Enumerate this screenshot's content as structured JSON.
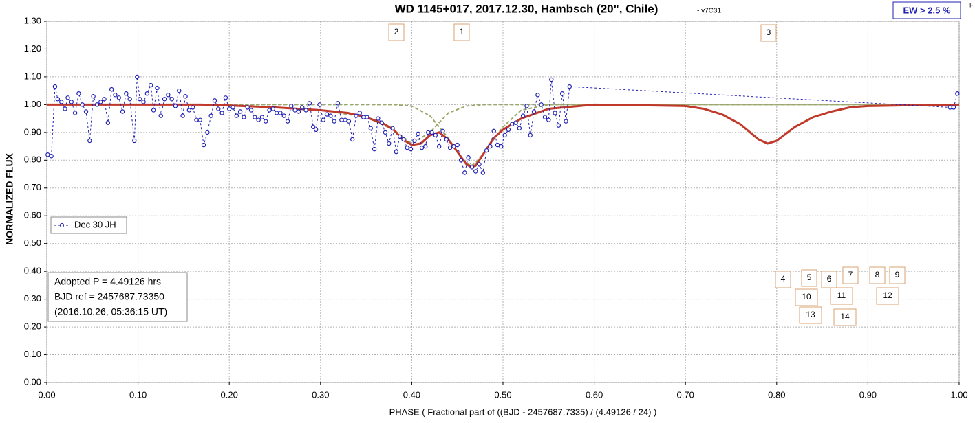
{
  "chart_data": {
    "type": "scatter",
    "title": "WD 1145+017, 2017.12.30, Hambsch (20\", Chile)",
    "subtitle": "- v7C31",
    "corner_note": "F",
    "badge": "EW > 2.5 %",
    "x_label": "PHASE ( Fractional part of ((BJD - 2457687.7335)  / (4.49126 / 24) )",
    "y_label": "NORMALIZED  FLUX",
    "info": [
      "Adopted P = 4.49126 hrs",
      "BJD ref = 2457687.73350",
      "(2016.10.26, 05:36:15 UT)"
    ],
    "dip_labels": [
      "1",
      "2",
      "3",
      "4",
      "5",
      "6",
      "7",
      "8",
      "9",
      "10",
      "11",
      "12",
      "13",
      "14"
    ],
    "legend": "upper left",
    "grid": true,
    "xlim": [
      0,
      1
    ],
    "ylim": [
      0,
      1.3
    ],
    "xticks": [
      {
        "value": 0,
        "label": "0.00"
      },
      {
        "value": 0.1,
        "label": "0.10"
      },
      {
        "value": 0.2,
        "label": "0.20"
      },
      {
        "value": 0.3,
        "label": "0.30"
      },
      {
        "value": 0.4,
        "label": "0.40"
      },
      {
        "value": 0.5,
        "label": "0.50"
      },
      {
        "value": 0.6,
        "label": "0.60"
      },
      {
        "value": 0.7,
        "label": "0.70"
      },
      {
        "value": 0.8,
        "label": "0.80"
      },
      {
        "value": 0.9,
        "label": "0.90"
      },
      {
        "value": 1,
        "label": "1.00"
      }
    ],
    "yticks": [
      {
        "value": 0,
        "label": "0.00"
      },
      {
        "value": 0.1,
        "label": "0.10"
      },
      {
        "value": 0.2,
        "label": "0.20"
      },
      {
        "value": 0.3,
        "label": "0.30"
      },
      {
        "value": 0.4,
        "label": "0.40"
      },
      {
        "value": 0.5,
        "label": "0.50"
      },
      {
        "value": 0.6,
        "label": "0.60"
      },
      {
        "value": 0.7,
        "label": "0.70"
      },
      {
        "value": 0.8,
        "label": "0.80"
      },
      {
        "value": 0.9,
        "label": "0.90"
      },
      {
        "value": 1,
        "label": "1.00"
      },
      {
        "value": 1.1,
        "label": "1.10"
      },
      {
        "value": 1.2,
        "label": "1.20"
      },
      {
        "value": 1.3,
        "label": "1.30"
      }
    ],
    "series": [
      {
        "name": "Dec 30 JH",
        "color": "#1f1fb4",
        "style": "points",
        "x": [
          0.001,
          0.005,
          0.009,
          0.012,
          0.016,
          0.02,
          0.023,
          0.027,
          0.031,
          0.035,
          0.039,
          0.043,
          0.047,
          0.051,
          0.055,
          0.059,
          0.063,
          0.067,
          0.071,
          0.075,
          0.079,
          0.083,
          0.087,
          0.091,
          0.096,
          0.099,
          0.102,
          0.106,
          0.11,
          0.114,
          0.117,
          0.121,
          0.125,
          0.129,
          0.133,
          0.137,
          0.141,
          0.145,
          0.149,
          0.152,
          0.156,
          0.16,
          0.164,
          0.168,
          0.172,
          0.176,
          0.18,
          0.184,
          0.188,
          0.192,
          0.196,
          0.2,
          0.204,
          0.208,
          0.212,
          0.216,
          0.22,
          0.224,
          0.228,
          0.232,
          0.236,
          0.24,
          0.244,
          0.248,
          0.252,
          0.256,
          0.26,
          0.264,
          0.268,
          0.272,
          0.276,
          0.28,
          0.284,
          0.288,
          0.292,
          0.295,
          0.299,
          0.303,
          0.307,
          0.311,
          0.315,
          0.319,
          0.323,
          0.327,
          0.331,
          0.335,
          0.339,
          0.343,
          0.347,
          0.351,
          0.355,
          0.359,
          0.363,
          0.367,
          0.371,
          0.375,
          0.379,
          0.383,
          0.387,
          0.391,
          0.395,
          0.399,
          0.403,
          0.407,
          0.411,
          0.415,
          0.418,
          0.422,
          0.426,
          0.43,
          0.434,
          0.438,
          0.442,
          0.446,
          0.45,
          0.454,
          0.458,
          0.462,
          0.466,
          0.47,
          0.474,
          0.478,
          0.482,
          0.486,
          0.49,
          0.494,
          0.498,
          0.502,
          0.506,
          0.51,
          0.514,
          0.518,
          0.522,
          0.526,
          0.53,
          0.534,
          0.538,
          0.542,
          0.546,
          0.55,
          0.553,
          0.557,
          0.561,
          0.565,
          0.569,
          0.573,
          0.99,
          0.994,
          0.998
        ],
        "values": [
          0.82,
          0.815,
          1.065,
          1.02,
          1.01,
          0.985,
          1.025,
          1.01,
          0.97,
          1.04,
          1.0,
          0.975,
          0.87,
          1.03,
          1.0,
          1.01,
          1.02,
          0.935,
          1.055,
          1.035,
          1.025,
          0.975,
          1.04,
          1.02,
          0.87,
          1.1,
          1.02,
          1.01,
          1.04,
          1.07,
          0.98,
          1.06,
          0.96,
          1.02,
          1.035,
          1.02,
          0.995,
          1.05,
          0.96,
          1.03,
          0.98,
          0.99,
          0.945,
          0.945,
          0.855,
          0.9,
          0.96,
          1.015,
          0.985,
          0.97,
          1.025,
          0.985,
          0.99,
          0.96,
          0.975,
          0.955,
          0.99,
          0.98,
          0.955,
          0.945,
          0.955,
          0.94,
          0.98,
          0.985,
          0.97,
          0.97,
          0.96,
          0.94,
          0.995,
          0.98,
          0.975,
          0.99,
          0.98,
          1.005,
          0.92,
          0.91,
          1.0,
          0.945,
          0.965,
          0.96,
          0.94,
          1.005,
          0.945,
          0.945,
          0.94,
          0.875,
          0.96,
          0.97,
          0.955,
          0.955,
          0.915,
          0.84,
          0.95,
          0.935,
          0.9,
          0.86,
          0.915,
          0.83,
          0.885,
          0.875,
          0.845,
          0.84,
          0.87,
          0.895,
          0.845,
          0.85,
          0.9,
          0.9,
          0.89,
          0.85,
          0.905,
          0.875,
          0.845,
          0.85,
          0.855,
          0.8,
          0.755,
          0.81,
          0.775,
          0.76,
          0.785,
          0.755,
          0.835,
          0.85,
          0.905,
          0.855,
          0.85,
          0.89,
          0.91,
          0.93,
          0.935,
          0.915,
          0.96,
          0.995,
          0.89,
          0.975,
          1.035,
          1.0,
          0.955,
          0.945,
          1.09,
          0.97,
          0.925,
          1.04,
          0.94,
          1.065,
          0.99,
          0.99,
          1.04
        ]
      },
      {
        "color": "#9aa86a",
        "style": "dashed",
        "x": [
          0,
          0.38,
          0.4,
          0.42,
          0.44,
          0.45,
          0.46,
          0.465,
          0.47,
          0.48,
          0.5,
          0.52,
          0.55,
          1
        ],
        "values": [
          1,
          1,
          0.995,
          0.96,
          0.88,
          0.83,
          0.79,
          0.78,
          0.79,
          0.83,
          0.92,
          0.98,
          1,
          1
        ]
      },
      {
        "color": "#9aa86a",
        "style": "dashed",
        "x": [
          0,
          0.17,
          0.25,
          0.3,
          0.35,
          0.38,
          0.4,
          0.42,
          0.44,
          0.46,
          0.48,
          1
        ],
        "values": [
          1,
          1,
          0.99,
          0.98,
          0.955,
          0.91,
          0.86,
          0.9,
          0.97,
          0.995,
          1,
          1
        ]
      },
      {
        "color": "#c0392b",
        "style": "solid",
        "x": [
          0,
          0.1,
          0.17,
          0.2,
          0.25,
          0.3,
          0.33,
          0.35,
          0.37,
          0.38,
          0.39,
          0.4,
          0.41,
          0.42,
          0.43,
          0.44,
          0.45,
          0.46,
          0.465,
          0.47,
          0.48,
          0.49,
          0.5,
          0.52,
          0.55,
          0.6,
          0.65,
          0.7,
          0.72,
          0.74,
          0.76,
          0.78,
          0.79,
          0.8,
          0.82,
          0.84,
          0.86,
          0.88,
          0.9,
          0.95,
          1.0
        ],
        "values": [
          1,
          1,
          1,
          0.997,
          0.99,
          0.98,
          0.97,
          0.955,
          0.93,
          0.91,
          0.875,
          0.855,
          0.86,
          0.89,
          0.9,
          0.875,
          0.83,
          0.785,
          0.775,
          0.78,
          0.83,
          0.88,
          0.91,
          0.95,
          0.985,
          1.0,
          0.998,
          0.995,
          0.985,
          0.965,
          0.93,
          0.875,
          0.86,
          0.87,
          0.92,
          0.955,
          0.975,
          0.99,
          0.995,
          0.998,
          1.0
        ]
      }
    ]
  }
}
